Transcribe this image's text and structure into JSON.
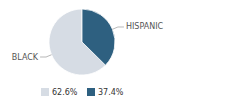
{
  "chart_data": {
    "type": "pie",
    "categories": [
      "BLACK",
      "HISPANIC"
    ],
    "values": [
      62.6,
      37.4
    ],
    "value_labels": [
      "62.6%",
      "37.4%"
    ],
    "colors": [
      "#d6dce4",
      "#2e6080"
    ],
    "legend": "bottom"
  }
}
